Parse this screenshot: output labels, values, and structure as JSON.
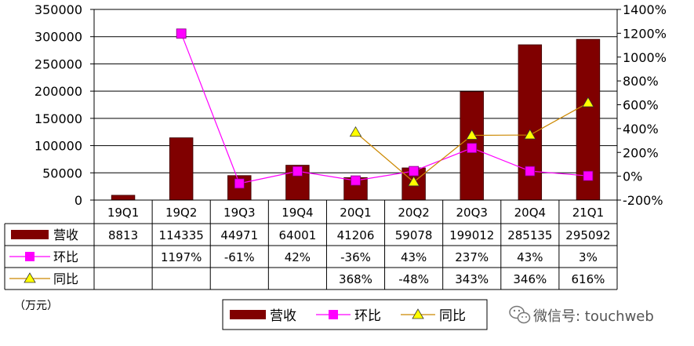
{
  "chart_data": {
    "type": "bar",
    "categories": [
      "19Q1",
      "19Q2",
      "19Q3",
      "19Q4",
      "20Q1",
      "20Q2",
      "20Q3",
      "20Q4",
      "21Q1"
    ],
    "series": [
      {
        "name": "营收",
        "kind": "bar",
        "axis": "left",
        "color": "#800000",
        "values": [
          8813,
          114335,
          44971,
          64001,
          41206,
          59078,
          199012,
          285135,
          295092
        ],
        "labels": [
          "8813",
          "114335",
          "44971",
          "64001",
          "41206",
          "59078",
          "199012",
          "285135",
          "295092"
        ]
      },
      {
        "name": "环比",
        "kind": "line",
        "axis": "right",
        "color": "#ff00ff",
        "marker": "square",
        "values": [
          null,
          1197,
          -61,
          42,
          -36,
          43,
          237,
          43,
          3
        ],
        "labels": [
          "",
          "1197%",
          "-61%",
          "42%",
          "-36%",
          "43%",
          "237%",
          "43%",
          "3%"
        ]
      },
      {
        "name": "同比",
        "kind": "line",
        "axis": "right",
        "color": "#ffff00",
        "line_color": "#cc8800",
        "marker": "triangle",
        "values": [
          null,
          null,
          null,
          null,
          368,
          -48,
          343,
          346,
          616
        ],
        "labels": [
          "",
          "",
          "",
          "",
          "368%",
          "-48%",
          "343%",
          "346%",
          "616%"
        ]
      }
    ],
    "y_left": {
      "min": 0,
      "max": 350000,
      "step": 50000,
      "ticks": [
        "0",
        "50000",
        "100000",
        "150000",
        "200000",
        "250000",
        "300000",
        "350000"
      ]
    },
    "y_right": {
      "min": -200,
      "max": 1400,
      "step": 200,
      "ticks": [
        "-200%",
        "0%",
        "200%",
        "400%",
        "600%",
        "800%",
        "1000%",
        "1200%",
        "1400%"
      ]
    },
    "unit": "（万元）",
    "grid": true,
    "data_table": true,
    "legend_position": "bottom",
    "watermark": "微信号: touchweb"
  }
}
